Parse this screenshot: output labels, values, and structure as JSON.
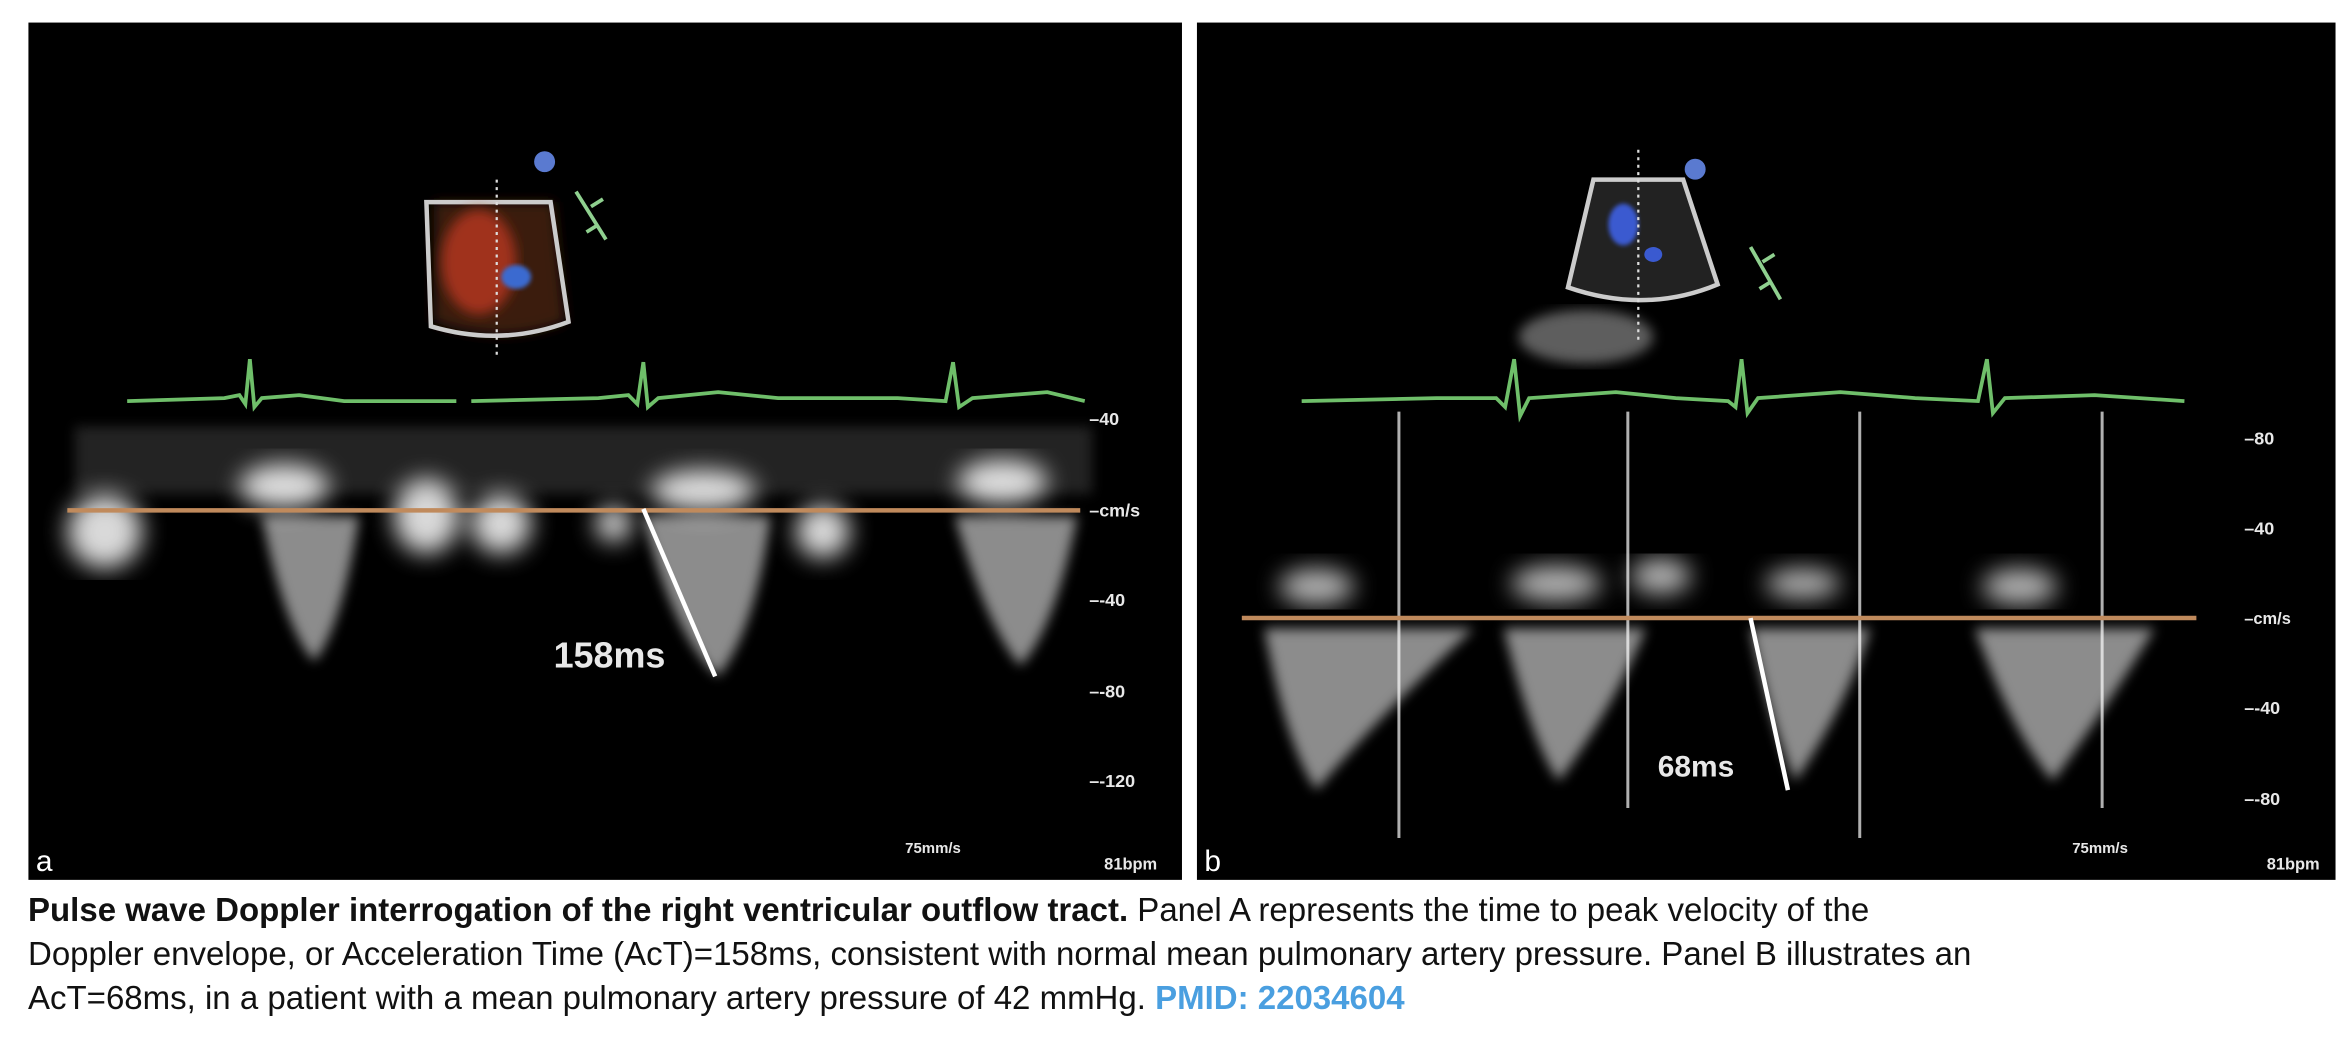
{
  "figure": {
    "panel_a": {
      "letter": "a",
      "measurement": "158ms",
      "scale_labels": [
        "40",
        "cm/s",
        "-40",
        "-80",
        "-120"
      ],
      "sweep_speed": "75mm/s",
      "heart_rate": "81bpm"
    },
    "panel_b": {
      "letter": "b",
      "measurement": "68ms",
      "scale_labels": [
        "80",
        "40",
        "cm/s",
        "-40",
        "-80"
      ],
      "sweep_speed": "75mm/s",
      "heart_rate": "81bpm"
    },
    "colors": {
      "ecg": "#6fbf6a",
      "baseline": "#c08a5c",
      "background": "#000000",
      "pmid_link": "#4a9fe0"
    }
  },
  "caption": {
    "title": "Pulse wave Doppler interrogation of the right ventricular outflow tract.",
    "line1_rest": " Panel A represents the time to peak velocity of the",
    "line2": "Doppler envelope, or Acceleration Time (AcT)=158ms, consistent with normal mean pulmonary artery pressure. Panel B illustrates an",
    "line3": "AcT=68ms, in a patient with a mean pulmonary artery pressure of 42 mmHg.",
    "pmid": "PMID: 22034604"
  }
}
